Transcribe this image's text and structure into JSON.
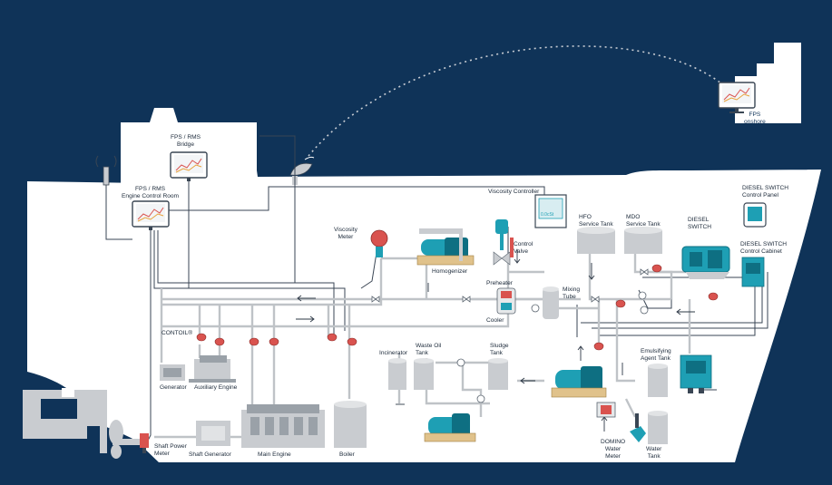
{
  "colors": {
    "background": "#0f3358",
    "hull": "#ffffff",
    "pipe": "#bfc3c7",
    "equipment_gray": "#c9ccd0",
    "teal": "#1e9fb4",
    "teal_dark": "#0e6f82",
    "valve_red": "#d9534f",
    "line_dark": "#3a4654",
    "dashed_link": "#c7ccd3"
  },
  "labels": {
    "fps_onshore": "FPS\nonshore",
    "fps_bridge": "FPS / RMS\nBridge",
    "fps_ecr": "FPS / RMS\nEngine Control Room",
    "viscosity_controller": "Viscosity Controller",
    "viscosity_meter": "Viscosity\nMeter",
    "control_valve": "Control\nValve",
    "homogenizer": "Homogenizer",
    "preheater": "Preheater",
    "cooler": "Cooler",
    "mixing_tube": "Mixing\nTube",
    "hfo_tank": "HFO\nService Tank",
    "mdo_tank": "MDO\nService Tank",
    "diesel_switch": "DIESEL\nSWITCH",
    "diesel_switch_panel": "DIESEL SWITCH\nControl Panel",
    "diesel_switch_cabinet": "DIESEL SWITCH\nControl Cabinet",
    "contoil": "CONTOIL®",
    "generator": "Generator",
    "auxiliary_engine": "Auxiliary Engine",
    "incinerator": "Incinerator",
    "waste_oil_tank": "Waste Oil\nTank",
    "sludge_tank": "Sludge\nTank",
    "emulsifying_tank": "Emulsifying\nAgent Tank",
    "shaft_power_meter": "Shaft Power\nMeter",
    "shaft_generator": "Shaft Generator",
    "main_engine": "Main Engine",
    "boiler": "Boiler",
    "domino_meter": "DOMINO\nWater\nMeter",
    "water_tank": "Water\nTank"
  }
}
